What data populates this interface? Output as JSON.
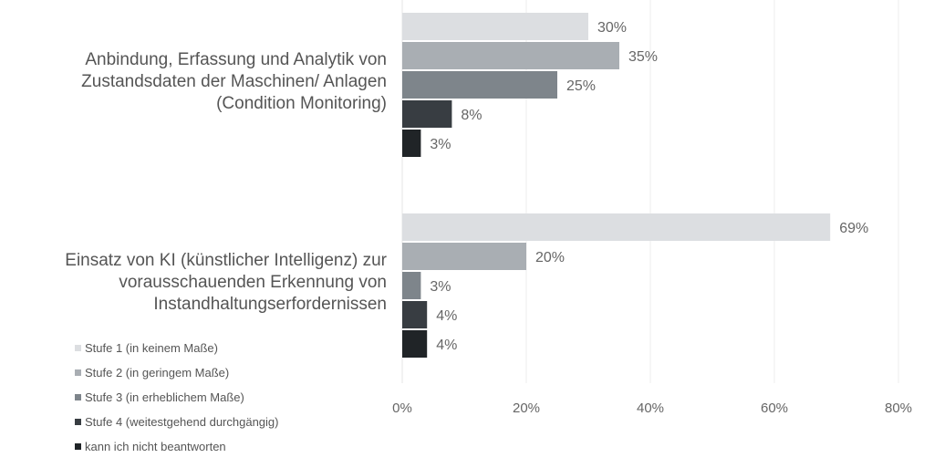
{
  "chart_data": {
    "type": "bar",
    "orientation": "horizontal",
    "categories": [
      "Anbindung, Erfassung und Analytik von\nZustandsdaten der Maschinen/ Anlagen\n(Condition Monitoring)",
      "Einsatz von KI (künstlicher Intelligenz) zur\nvorausschauenden Erkennung von\nInstandhaltungserfordernissen"
    ],
    "series": [
      {
        "name": "Stufe 1 (in keinem Maße)",
        "color": "#dcdee1",
        "values": [
          30,
          69
        ]
      },
      {
        "name": "Stufe 2 (in geringem Maße)",
        "color": "#a9aeb3",
        "values": [
          35,
          20
        ]
      },
      {
        "name": "Stufe 3 (in erheblichem Maße)",
        "color": "#7e858b",
        "values": [
          25,
          3
        ]
      },
      {
        "name": "Stufe 4 (weitestgehend durchgängig)",
        "color": "#383d42",
        "values": [
          8,
          4
        ]
      },
      {
        "name": "kann ich nicht beantworten",
        "color": "#202427",
        "values": [
          3,
          4
        ]
      }
    ],
    "value_suffix": "%",
    "xlim": [
      0,
      80
    ],
    "xticks": [
      "0%",
      "20%",
      "40%",
      "60%",
      "80%"
    ],
    "grid": true,
    "legend_position": "bottom-left",
    "title": "",
    "xlabel": "",
    "ylabel": ""
  }
}
